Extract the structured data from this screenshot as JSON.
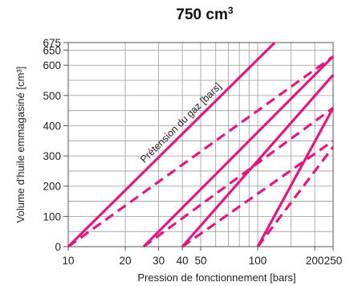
{
  "chart_data": {
    "type": "line",
    "title": "750 cm",
    "title_sup": "3",
    "xlabel": "Pression de fonctionnement [bars]",
    "ylabel": "Volume d'huile emmagasiné [cm³]",
    "xscale": "log",
    "xlim": [
      10,
      250
    ],
    "ylim": [
      0,
      675
    ],
    "x_ticks": [
      10,
      20,
      30,
      40,
      50,
      100,
      200,
      250
    ],
    "y_ticks": [
      0,
      100,
      200,
      300,
      400,
      500,
      600,
      650,
      675
    ],
    "grid": true,
    "annotation": "Prétension du gaz [bars]",
    "line_color": "#e0197e",
    "series": [
      {
        "style": "solid",
        "x": [
          10,
          123
        ],
        "y": [
          0,
          675
        ]
      },
      {
        "style": "dashed",
        "x": [
          10,
          250
        ],
        "y": [
          0,
          629
        ]
      },
      {
        "style": "solid",
        "x": [
          25,
          250
        ],
        "y": [
          0,
          629
        ]
      },
      {
        "style": "dashed",
        "x": [
          25,
          250
        ],
        "y": [
          0,
          459
        ]
      },
      {
        "style": "solid",
        "x": [
          40,
          250
        ],
        "y": [
          0,
          568
        ]
      },
      {
        "style": "dashed",
        "x": [
          40,
          250
        ],
        "y": [
          0,
          350
        ]
      },
      {
        "style": "solid",
        "x": [
          100,
          250
        ],
        "y": [
          0,
          459
        ]
      },
      {
        "style": "dashed",
        "x": [
          100,
          250
        ],
        "y": [
          0,
          330
        ]
      }
    ]
  }
}
